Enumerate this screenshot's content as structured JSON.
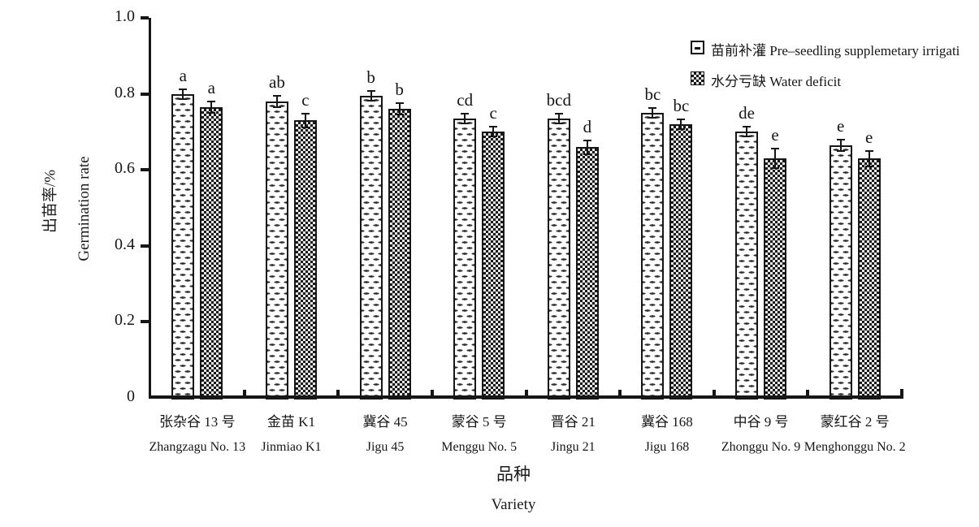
{
  "colors": {
    "ink": "#161616",
    "background": "#ffffff"
  },
  "chart_data": {
    "type": "bar",
    "title": "",
    "y_title_zh": "出苗率/%",
    "y_title_en": "Germination rate",
    "x_title_zh": "品种",
    "x_title_en": "Variety",
    "ylim": [
      0,
      1.0
    ],
    "yticks": [
      "0",
      "0.2",
      "0.4",
      "0.6",
      "0.8",
      "1.0"
    ],
    "grid": false,
    "legend_position": "top-right",
    "categories": [
      {
        "zh": "张杂谷 13 号",
        "en": "Zhangzagu No. 13"
      },
      {
        "zh": "金苗 K1",
        "en": "Jinmiao K1"
      },
      {
        "zh": "冀谷 45",
        "en": "Jigu 45"
      },
      {
        "zh": "蒙谷 5 号",
        "en": "Menggu No. 5"
      },
      {
        "zh": "晋谷 21",
        "en": "Jingu 21"
      },
      {
        "zh": "冀谷 168",
        "en": "Jigu 168"
      },
      {
        "zh": "中谷 9 号",
        "en": "Zhonggu No. 9"
      },
      {
        "zh": "蒙红谷 2 号",
        "en": "Menghonggu No. 2"
      }
    ],
    "series": [
      {
        "name_zh": "苗前补灌",
        "name_en": "Pre–seedling supplemetary irrigati",
        "pattern": "horizontal-dashes",
        "values": [
          0.8,
          0.78,
          0.795,
          0.735,
          0.735,
          0.75,
          0.7,
          0.665
        ],
        "errors": [
          0.013,
          0.015,
          0.013,
          0.013,
          0.013,
          0.013,
          0.013,
          0.015
        ],
        "sig_letters": [
          "a",
          "ab",
          "b",
          "cd",
          "bcd",
          "bc",
          "de",
          "e"
        ]
      },
      {
        "name_zh": "水分亏缺",
        "name_en": "Water deficit",
        "pattern": "checkerboard",
        "values": [
          0.765,
          0.73,
          0.76,
          0.7,
          0.66,
          0.72,
          0.63,
          0.63
        ],
        "errors": [
          0.015,
          0.018,
          0.015,
          0.013,
          0.018,
          0.013,
          0.025,
          0.02
        ],
        "sig_letters": [
          "a",
          "c",
          "b",
          "c",
          "d",
          "bc",
          "e",
          "e"
        ]
      }
    ]
  }
}
